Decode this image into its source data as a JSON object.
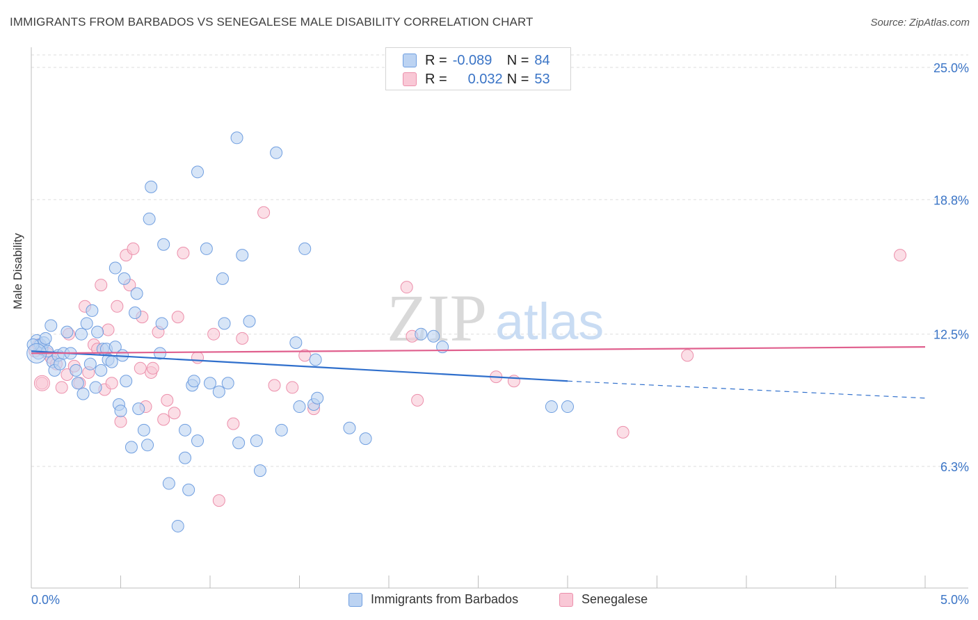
{
  "title": "IMMIGRANTS FROM BARBADOS VS SENEGALESE MALE DISABILITY CORRELATION CHART",
  "source": "Source: ZipAtlas.com",
  "watermark": {
    "zip": "ZIP",
    "atlas": "atlas"
  },
  "legend": {
    "r_label": "R =",
    "n_label": "N =",
    "rows": [
      {
        "series": "Immigrants from Barbados",
        "r": "-0.089",
        "n": "84"
      },
      {
        "series": "Senegalese",
        "r": "0.032",
        "n": "53"
      }
    ]
  },
  "colors": {
    "blue_fill": "#bcd3f2",
    "blue_stroke": "#6f9ee0",
    "blue_line": "#2f6fcc",
    "pink_fill": "#f9c8d6",
    "pink_stroke": "#ec8fab",
    "pink_line": "#e0608e",
    "tick_label": "#3a74c6",
    "grid": "#dddddd"
  },
  "chart_data": {
    "type": "scatter",
    "title": "IMMIGRANTS FROM BARBADOS VS SENEGALESE MALE DISABILITY CORRELATION CHART",
    "xlabel": "",
    "ylabel": "Male Disability",
    "xlim": [
      0.0,
      5.0
    ],
    "ylim": [
      0.0,
      26.0
    ],
    "x_tick_labels": [
      "0.0%",
      "5.0%"
    ],
    "y_ticks": [
      6.3,
      12.5,
      18.8,
      25.0
    ],
    "y_tick_labels": [
      "6.3%",
      "12.5%",
      "18.8%",
      "25.0%"
    ],
    "series": [
      {
        "name": "Immigrants from Barbados",
        "trend": {
          "x0": 0.0,
          "y0": 11.7,
          "x1": 3.0,
          "y1": 10.3,
          "dashed_to_x": 5.0,
          "dashed_to_y": 9.5
        },
        "points": [
          [
            0.03,
            12.2
          ],
          [
            0.04,
            11.6
          ],
          [
            0.05,
            12.0
          ],
          [
            0.06,
            11.8
          ],
          [
            0.07,
            12.1
          ],
          [
            0.08,
            12.3
          ],
          [
            0.09,
            11.7
          ],
          [
            0.11,
            12.9
          ],
          [
            0.12,
            11.2
          ],
          [
            0.13,
            10.8
          ],
          [
            0.15,
            11.5
          ],
          [
            0.16,
            11.1
          ],
          [
            0.18,
            11.6
          ],
          [
            0.2,
            12.6
          ],
          [
            0.22,
            11.6
          ],
          [
            0.25,
            10.8
          ],
          [
            0.26,
            10.2
          ],
          [
            0.28,
            12.5
          ],
          [
            0.29,
            9.7
          ],
          [
            0.31,
            13.0
          ],
          [
            0.33,
            11.1
          ],
          [
            0.34,
            13.6
          ],
          [
            0.36,
            10.0
          ],
          [
            0.37,
            12.6
          ],
          [
            0.39,
            10.8
          ],
          [
            0.4,
            11.8
          ],
          [
            0.42,
            11.8
          ],
          [
            0.43,
            11.3
          ],
          [
            0.45,
            11.2
          ],
          [
            0.47,
            11.9
          ],
          [
            0.47,
            15.6
          ],
          [
            0.49,
            9.2
          ],
          [
            0.5,
            8.9
          ],
          [
            0.51,
            11.5
          ],
          [
            0.52,
            15.1
          ],
          [
            0.53,
            10.3
          ],
          [
            0.56,
            7.2
          ],
          [
            0.58,
            13.5
          ],
          [
            0.59,
            14.4
          ],
          [
            0.6,
            9.0
          ],
          [
            0.63,
            8.0
          ],
          [
            0.65,
            7.3
          ],
          [
            0.66,
            17.9
          ],
          [
            0.67,
            19.4
          ],
          [
            0.72,
            11.6
          ],
          [
            0.73,
            13.0
          ],
          [
            0.74,
            16.7
          ],
          [
            0.77,
            5.5
          ],
          [
            0.82,
            3.5
          ],
          [
            0.86,
            6.7
          ],
          [
            0.86,
            8.0
          ],
          [
            0.88,
            5.2
          ],
          [
            0.9,
            10.1
          ],
          [
            0.91,
            10.3
          ],
          [
            0.93,
            7.5
          ],
          [
            0.93,
            20.1
          ],
          [
            0.98,
            16.5
          ],
          [
            1.0,
            10.2
          ],
          [
            1.05,
            9.8
          ],
          [
            1.07,
            15.1
          ],
          [
            1.08,
            13.0
          ],
          [
            1.1,
            10.2
          ],
          [
            1.15,
            21.7
          ],
          [
            1.16,
            7.4
          ],
          [
            1.18,
            16.2
          ],
          [
            1.22,
            13.1
          ],
          [
            1.26,
            7.5
          ],
          [
            1.28,
            6.1
          ],
          [
            1.37,
            21.0
          ],
          [
            1.4,
            8.0
          ],
          [
            1.48,
            12.1
          ],
          [
            1.5,
            9.1
          ],
          [
            1.53,
            16.5
          ],
          [
            1.58,
            9.2
          ],
          [
            1.59,
            11.3
          ],
          [
            1.6,
            9.5
          ],
          [
            1.78,
            8.1
          ],
          [
            1.87,
            7.6
          ],
          [
            2.18,
            12.5
          ],
          [
            2.25,
            12.4
          ],
          [
            2.3,
            11.9
          ],
          [
            2.91,
            9.1
          ],
          [
            3.0,
            9.1
          ],
          [
            0.01,
            12.0
          ]
        ]
      },
      {
        "name": "Senegalese",
        "trend": {
          "x0": 0.0,
          "y0": 11.6,
          "x1": 5.0,
          "y1": 11.9
        },
        "points": [
          [
            0.02,
            11.7
          ],
          [
            0.04,
            12.0
          ],
          [
            0.06,
            10.2
          ],
          [
            0.09,
            11.6
          ],
          [
            0.11,
            11.4
          ],
          [
            0.14,
            11.1
          ],
          [
            0.17,
            10.0
          ],
          [
            0.2,
            10.6
          ],
          [
            0.21,
            12.5
          ],
          [
            0.24,
            11.0
          ],
          [
            0.27,
            10.2
          ],
          [
            0.3,
            13.8
          ],
          [
            0.32,
            10.7
          ],
          [
            0.35,
            12.0
          ],
          [
            0.37,
            11.8
          ],
          [
            0.39,
            14.8
          ],
          [
            0.41,
            9.9
          ],
          [
            0.43,
            12.7
          ],
          [
            0.45,
            10.2
          ],
          [
            0.48,
            13.8
          ],
          [
            0.5,
            8.4
          ],
          [
            0.53,
            16.2
          ],
          [
            0.55,
            14.8
          ],
          [
            0.57,
            16.5
          ],
          [
            0.61,
            10.9
          ],
          [
            0.62,
            13.3
          ],
          [
            0.64,
            9.1
          ],
          [
            0.67,
            10.7
          ],
          [
            0.68,
            10.9
          ],
          [
            0.71,
            12.6
          ],
          [
            0.74,
            8.5
          ],
          [
            0.76,
            9.4
          ],
          [
            0.8,
            8.8
          ],
          [
            0.82,
            13.3
          ],
          [
            0.85,
            16.3
          ],
          [
            0.93,
            11.4
          ],
          [
            1.02,
            12.5
          ],
          [
            1.05,
            4.7
          ],
          [
            1.13,
            8.3
          ],
          [
            1.18,
            12.3
          ],
          [
            1.3,
            18.2
          ],
          [
            1.36,
            10.1
          ],
          [
            1.46,
            10.0
          ],
          [
            1.53,
            11.5
          ],
          [
            1.58,
            9.0
          ],
          [
            2.1,
            14.7
          ],
          [
            2.13,
            12.4
          ],
          [
            2.16,
            9.4
          ],
          [
            2.6,
            10.5
          ],
          [
            2.7,
            10.3
          ],
          [
            3.31,
            7.9
          ],
          [
            3.67,
            11.5
          ],
          [
            4.86,
            16.2
          ]
        ]
      }
    ]
  }
}
